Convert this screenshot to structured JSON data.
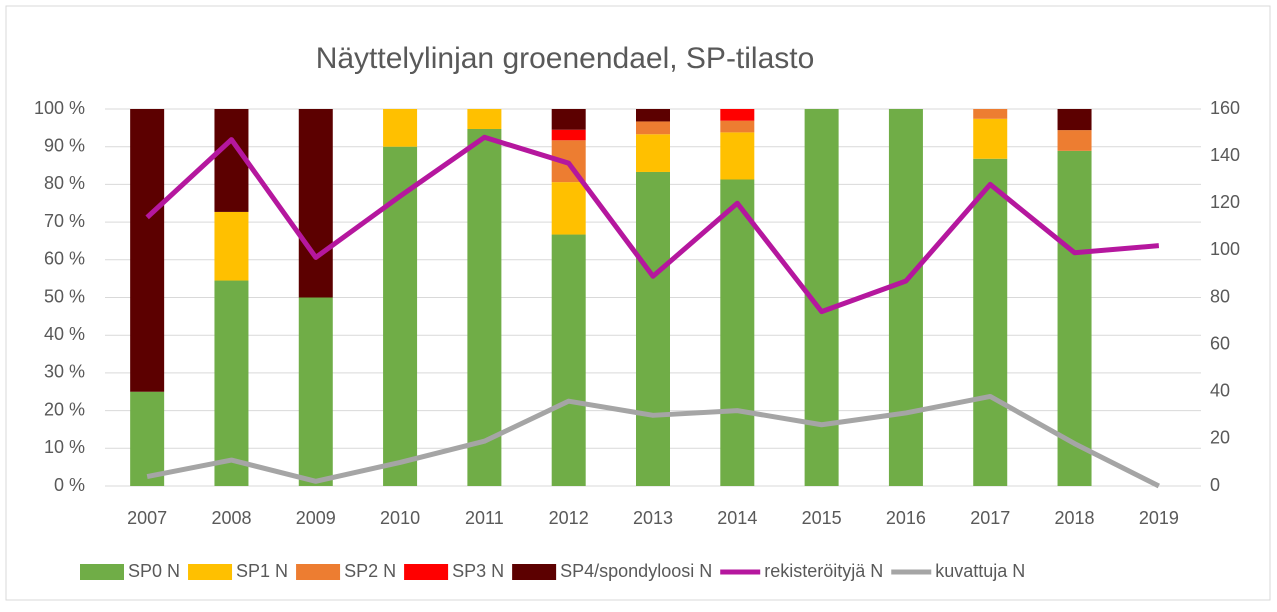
{
  "chart_data": {
    "type": "bar",
    "stacked": "percent",
    "title": "Näyttelylinjan groenendael, SP-tilasto",
    "categories": [
      "2007",
      "2008",
      "2009",
      "2010",
      "2011",
      "2012",
      "2013",
      "2014",
      "2015",
      "2016",
      "2017",
      "2018",
      "2019"
    ],
    "series": [
      {
        "name": "SP0 N",
        "color": "#70ad47",
        "values": [
          25,
          54.5,
          50,
          90,
          94.7,
          66.7,
          83.3,
          81.3,
          100,
          100,
          86.8,
          88.9,
          null
        ]
      },
      {
        "name": "SP1 N",
        "color": "#ffc000",
        "values": [
          0,
          18.2,
          0,
          10,
          5.3,
          13.9,
          10,
          12.5,
          0,
          0,
          10.6,
          0,
          null
        ]
      },
      {
        "name": "SP2 N",
        "color": "#ed7d31",
        "values": [
          0,
          0,
          0,
          0,
          0,
          11.1,
          3.4,
          3.1,
          0,
          0,
          2.6,
          5.5,
          null
        ]
      },
      {
        "name": "SP3 N",
        "color": "#ff0000",
        "values": [
          0,
          0,
          0,
          0,
          0,
          2.8,
          0,
          3.1,
          0,
          0,
          0,
          0,
          null
        ]
      },
      {
        "name": "SP4/spondyloosi N",
        "color": "#5c0000",
        "values": [
          75,
          27.3,
          50,
          0,
          0,
          5.5,
          3.3,
          0,
          0,
          0,
          0,
          5.6,
          null
        ]
      },
      {
        "name": "rekisteröityjä N",
        "color": "#b5179e",
        "type": "line",
        "axis": "y2",
        "values": [
          114,
          147,
          97,
          123,
          148,
          137,
          89,
          120,
          74,
          87,
          128,
          99,
          102
        ]
      },
      {
        "name": "kuvattuja N",
        "color": "#a5a5a5",
        "type": "line",
        "axis": "y2",
        "values": [
          4,
          11,
          2,
          10,
          19,
          36,
          30,
          32,
          26,
          31,
          38,
          18,
          0
        ]
      }
    ],
    "ylim": [
      0,
      100
    ],
    "yticks": [
      {
        "value": 0,
        "label": "0 %"
      },
      {
        "value": 10,
        "label": "10 %"
      },
      {
        "value": 20,
        "label": "20 %"
      },
      {
        "value": 30,
        "label": "30 %"
      },
      {
        "value": 40,
        "label": "40 %"
      },
      {
        "value": 50,
        "label": "50 %"
      },
      {
        "value": 60,
        "label": "60 %"
      },
      {
        "value": 70,
        "label": "70 %"
      },
      {
        "value": 80,
        "label": "80 %"
      },
      {
        "value": 90,
        "label": "90 %"
      },
      {
        "value": 100,
        "label": "100 %"
      }
    ],
    "y2lim": [
      0,
      160
    ],
    "y2ticks": [
      0,
      20,
      40,
      60,
      80,
      100,
      120,
      140,
      160
    ],
    "grid": true,
    "legend": "bottom"
  }
}
